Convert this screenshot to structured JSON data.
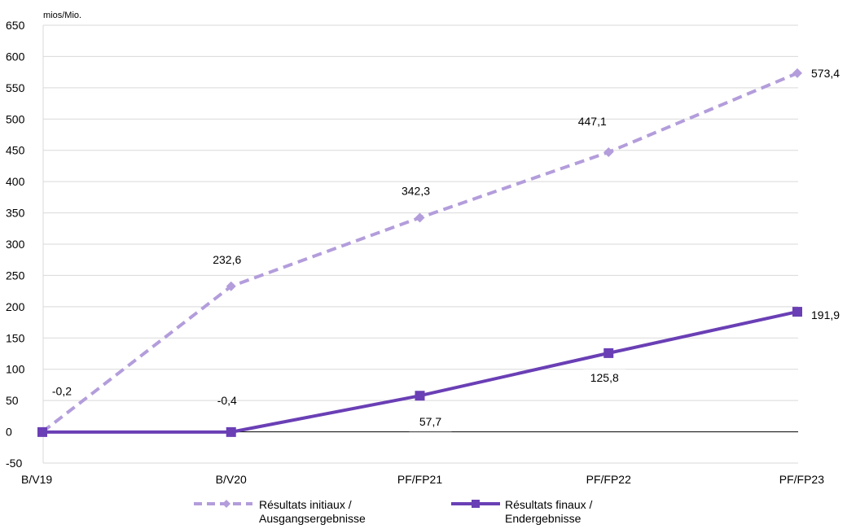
{
  "chart_data": {
    "type": "line",
    "unit_label": "mios/Mio.",
    "categories": [
      "B/V19",
      "B/V20",
      "PF/FP21",
      "PF/FP22",
      "PF/FP23"
    ],
    "ylim": [
      -50,
      650
    ],
    "y_ticks": [
      -50,
      0,
      50,
      100,
      150,
      200,
      250,
      300,
      350,
      400,
      450,
      500,
      550,
      600,
      650
    ],
    "grid": true,
    "legend_position": "bottom",
    "series": [
      {
        "name_line1": "Résultats initiaux /",
        "name_line2": "Ausgangsergebnisse",
        "values": [
          -0.2,
          232.6,
          342.3,
          447.1,
          573.4
        ],
        "labels": [
          "-0,2",
          "232,6",
          "342,3",
          "447,1",
          "573,4"
        ],
        "color": "#b39ddb",
        "style": "dashed",
        "marker": "diamond"
      },
      {
        "name_line1": "Résultats finaux /",
        "name_line2": "Endergebnisse",
        "values": [
          -0.4,
          -0.4,
          57.7,
          125.8,
          191.9
        ],
        "labels": [
          "",
          "-0,4",
          "57,7",
          "125,8",
          "191,9"
        ],
        "color": "#6a3fb5",
        "style": "solid",
        "marker": "square"
      }
    ]
  }
}
